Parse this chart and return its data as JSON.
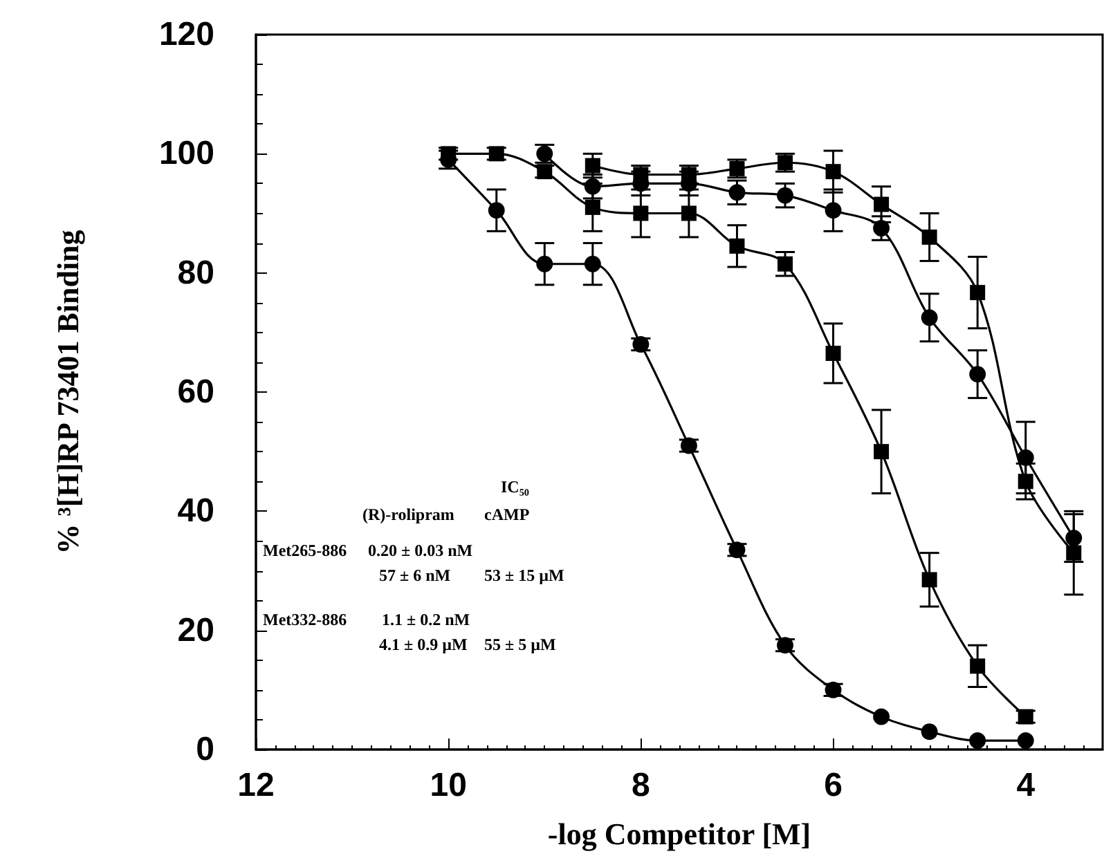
{
  "chart_data": {
    "type": "line",
    "xlabel": "-log Competitor [M]",
    "ylabel": "% ³[H]RP 73401 Binding",
    "xlim": [
      12,
      3.2
    ],
    "xticks": [
      12,
      10,
      8,
      6,
      4
    ],
    "ylim": [
      0,
      120
    ],
    "yticks": [
      0,
      20,
      40,
      60,
      80,
      100,
      120
    ],
    "grid": false,
    "line_style": "solid",
    "annotations": [
      "IC₅₀",
      "(R)-rolipram",
      "cAMP",
      "Met265-886",
      "0.20 ± 0.03 nM",
      "57 ± 6 nM",
      "53 ± 15 µM",
      "Met332-886",
      "1.1 ± 0.2 nM",
      "4.1 ± 0.9 µM",
      "55 ± 5 µM"
    ],
    "series": [
      {
        "color": "#000000",
        "marker": "circle",
        "x": [
          10,
          9.5,
          9,
          8.5,
          8,
          7.5,
          7,
          6.5,
          6,
          5.5,
          5,
          4.5,
          4
        ],
        "values": [
          99,
          90.5,
          81.5,
          81.5,
          68,
          51,
          33.5,
          17.5,
          10,
          5.5,
          3,
          1.5,
          1.5
        ],
        "errors": [
          1.5,
          3.5,
          3.5,
          3.5,
          1,
          1,
          1,
          1,
          1,
          null,
          null,
          null,
          null
        ]
      },
      {
        "color": "#000000",
        "marker": "square",
        "x": [
          10,
          9.5,
          9,
          8.5,
          8,
          7.5,
          7,
          6.5,
          6,
          5.5,
          5,
          4.5,
          4
        ],
        "values": [
          100,
          100,
          97,
          91,
          90,
          90,
          84.5,
          81.5,
          66.5,
          50,
          28.5,
          14,
          5.5
        ],
        "errors": [
          1,
          1,
          1,
          4,
          4,
          4,
          3.5,
          2,
          5,
          7,
          4.5,
          3.5,
          1
        ]
      },
      {
        "color": "#000000",
        "marker": "circle",
        "x": [
          9,
          8.5,
          8,
          7.5,
          7,
          6.5,
          6,
          5.5,
          5,
          4.5,
          4,
          3.5
        ],
        "values": [
          100,
          94.5,
          95,
          95,
          93.5,
          93,
          90.5,
          87.5,
          72.5,
          63,
          49,
          35.5
        ],
        "errors": [
          1.5,
          2,
          2,
          2,
          2,
          2,
          3.5,
          2,
          4,
          4,
          6,
          4
        ]
      },
      {
        "color": "#000000",
        "marker": "square",
        "x": [
          8.5,
          8,
          7.5,
          7,
          6.5,
          6,
          5.5,
          5,
          4.5,
          4,
          3.5
        ],
        "values": [
          98,
          96.5,
          96.5,
          97.5,
          98.5,
          97,
          91.5,
          86,
          76.7,
          45,
          33
        ],
        "errors": [
          2,
          1.5,
          1.5,
          1.5,
          1.5,
          3.5,
          3,
          4,
          6,
          3,
          7
        ]
      }
    ]
  }
}
